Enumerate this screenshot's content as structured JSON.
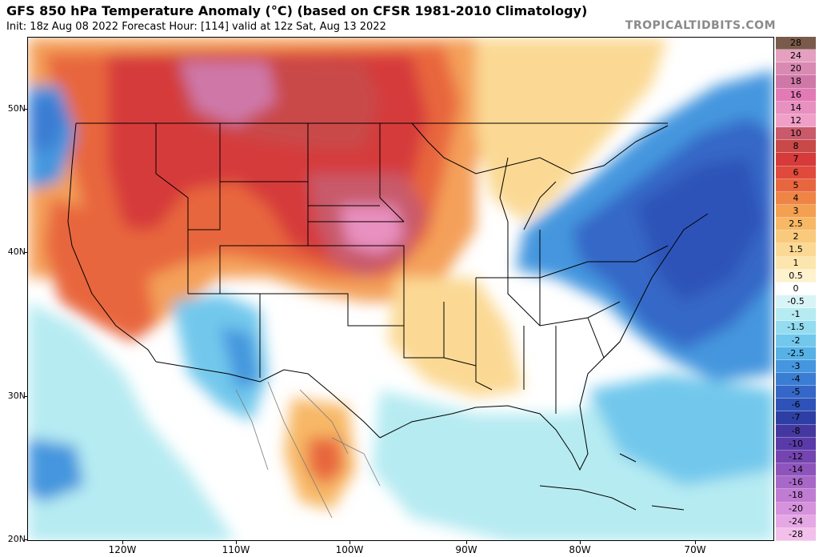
{
  "header": {
    "title": "GFS 850 hPa Temperature Anomaly (°C) (based on CFSR 1981-2010 Climatology)",
    "subtitle": "Init: 18z Aug 08 2022   Forecast Hour: [114]   valid at 12z Sat, Aug 13 2022",
    "brand": "TROPICALTIDBITS.COM"
  },
  "map": {
    "lat_labels": [
      "50N",
      "40N",
      "30N",
      "20N"
    ],
    "lon_labels": [
      "120W",
      "110W",
      "100W",
      "90W",
      "80W",
      "70W"
    ]
  },
  "legend": {
    "levels": [
      "28",
      "24",
      "20",
      "18",
      "16",
      "14",
      "12",
      "10",
      "8",
      "7",
      "6",
      "5",
      "4",
      "3",
      "2.5",
      "2",
      "1.5",
      "1",
      "0.5",
      "0",
      "-0.5",
      "-1",
      "-1.5",
      "-2",
      "-2.5",
      "-3",
      "-4",
      "-5",
      "-6",
      "-7",
      "-8",
      "-10",
      "-12",
      "-14",
      "-16",
      "-18",
      "-20",
      "-24",
      "-28"
    ],
    "colors": [
      "#7a5a4a",
      "#e5a0c0",
      "#d98ab2",
      "#cf78a8",
      "#e27ab6",
      "#e890c0",
      "#f0a0c8",
      "#c85a6a",
      "#c94848",
      "#d63a3a",
      "#e04a3c",
      "#e8663e",
      "#ee8446",
      "#f3a050",
      "#f7b866",
      "#f9c97c",
      "#fbd994",
      "#fde6ad",
      "#fef2cf",
      "#ffffff",
      "#d8f4f6",
      "#b6ebf2",
      "#94dcef",
      "#72c8ec",
      "#56b1e6",
      "#4596de",
      "#3b7dd3",
      "#3467c7",
      "#2e52b8",
      "#2d3fa4",
      "#4438a0",
      "#5a3aa8",
      "#7444b0",
      "#8e54bc",
      "#a868c8",
      "#c07cd2",
      "#d692dc",
      "#e6a8e4",
      "#f2c0ea"
    ]
  }
}
